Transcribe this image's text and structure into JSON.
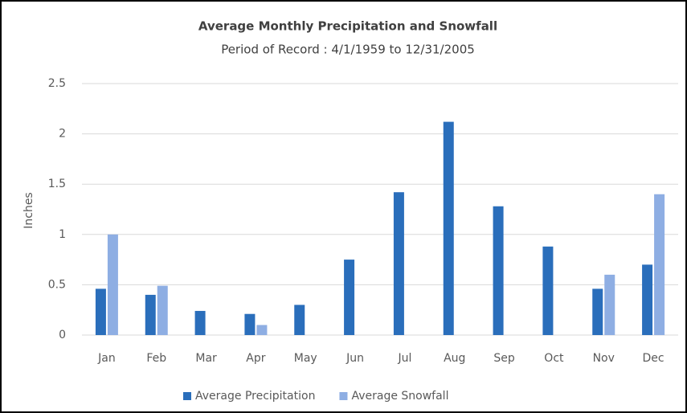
{
  "chart_data": {
    "type": "bar",
    "title": "Average Monthly Precipitation and Snowfall",
    "subtitle": "Period of Record : 4/1/1959 to 12/31/2005",
    "y_label": "Inches",
    "categories": [
      "Jan",
      "Feb",
      "Mar",
      "Apr",
      "May",
      "Jun",
      "Jul",
      "Aug",
      "Sep",
      "Oct",
      "Nov",
      "Dec"
    ],
    "series": [
      {
        "name": "Average Precipitation",
        "color": "#2a6ebb",
        "values": [
          0.46,
          0.4,
          0.24,
          0.21,
          0.3,
          0.75,
          1.42,
          2.12,
          1.28,
          0.88,
          0.46,
          0.7
        ]
      },
      {
        "name": "Average Snowfall",
        "color": "#8eaee3",
        "values": [
          1.0,
          0.49,
          0,
          0.1,
          0,
          0,
          0,
          0,
          0,
          0,
          0.6,
          1.4
        ]
      }
    ],
    "ylim": [
      0,
      2.5
    ],
    "yticks": [
      0,
      0.5,
      1,
      1.5,
      2,
      2.5
    ],
    "grid": true,
    "legend": "bottom"
  }
}
